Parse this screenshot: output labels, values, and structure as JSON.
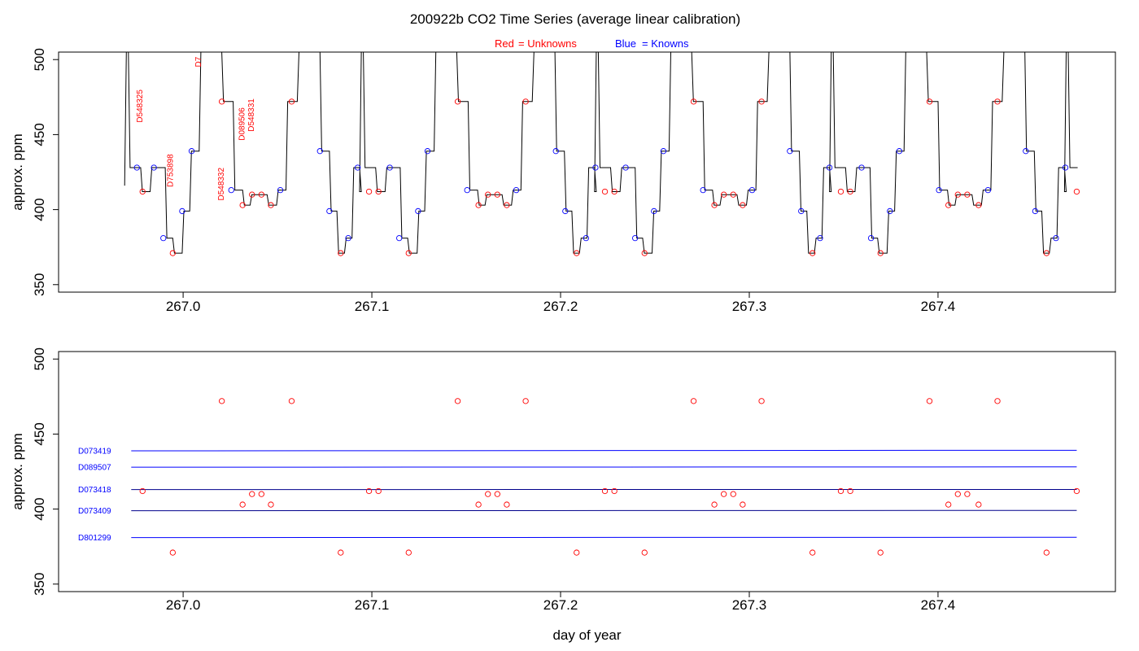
{
  "title": "200922b   CO2 Time Series (average linear calibration)",
  "legend": {
    "red_word": "Red",
    "red_rest": "= Unknowns",
    "blue_word": "Blue",
    "blue_rest": "= Knowns",
    "red_color": "#ff0000",
    "blue_color": "#0000ff"
  },
  "colors": {
    "unknown": "#ff0000",
    "known": "#0000ff",
    "trace": "#000000"
  },
  "chart_data": [
    {
      "type": "line",
      "panel": "top",
      "ylabel": "approx. ppm",
      "xlabel": "",
      "xlim": [
        266.934,
        267.494
      ],
      "ylim": [
        345,
        505
      ],
      "xticks": [
        267.0,
        267.1,
        267.2,
        267.3,
        267.4
      ],
      "xtick_labels": [
        "267.0",
        "267.1",
        "267.2",
        "267.3",
        "267.4"
      ],
      "yticks": [
        350,
        400,
        450,
        500
      ],
      "ytick_labels": [
        "350",
        "400",
        "450",
        "500"
      ],
      "trace_start": 266.969,
      "trace_end": 267.474,
      "cycle_length": 0.1245,
      "cycle_levels": [
        [
          0.0,
          505
        ],
        [
          0.002,
          428
        ],
        [
          0.0085,
          412
        ],
        [
          0.0135,
          428
        ],
        [
          0.0215,
          381
        ],
        [
          0.0255,
          371
        ],
        [
          0.0305,
          399
        ],
        [
          0.0345,
          439
        ],
        [
          0.0395,
          505
        ],
        [
          0.0515,
          472
        ],
        [
          0.0575,
          413
        ],
        [
          0.0625,
          403
        ],
        [
          0.0665,
          410
        ],
        [
          0.0755,
          403
        ],
        [
          0.0805,
          413
        ],
        [
          0.0855,
          472
        ],
        [
          0.0915,
          505
        ],
        [
          0.1035,
          439
        ],
        [
          0.1085,
          399
        ],
        [
          0.1125,
          371
        ],
        [
          0.1165,
          381
        ],
        [
          0.1205,
          428
        ],
        [
          0.1245,
          412
        ]
      ],
      "points": [
        {
          "x": 266.9755,
          "y": 428,
          "group": "known"
        },
        {
          "x": 266.9785,
          "y": 412,
          "group": "unknown"
        },
        {
          "x": 266.9845,
          "y": 428,
          "group": "known"
        },
        {
          "x": 266.9895,
          "y": 381,
          "group": "known"
        },
        {
          "x": 266.9945,
          "y": 371,
          "group": "unknown"
        },
        {
          "x": 266.9995,
          "y": 399,
          "group": "known"
        },
        {
          "x": 267.0045,
          "y": 439,
          "group": "known"
        },
        {
          "x": 267.0205,
          "y": 472,
          "group": "unknown"
        },
        {
          "x": 267.0255,
          "y": 413,
          "group": "known"
        },
        {
          "x": 267.0315,
          "y": 403,
          "group": "unknown"
        },
        {
          "x": 267.0365,
          "y": 410,
          "group": "unknown"
        },
        {
          "x": 267.0415,
          "y": 410,
          "group": "unknown"
        },
        {
          "x": 267.0465,
          "y": 403,
          "group": "unknown"
        },
        {
          "x": 267.0515,
          "y": 413,
          "group": "known"
        },
        {
          "x": 267.0575,
          "y": 472,
          "group": "unknown"
        },
        {
          "x": 267.0725,
          "y": 439,
          "group": "known"
        },
        {
          "x": 267.0775,
          "y": 399,
          "group": "known"
        },
        {
          "x": 267.0835,
          "y": 371,
          "group": "unknown"
        },
        {
          "x": 267.0875,
          "y": 381,
          "group": "known"
        },
        {
          "x": 267.0925,
          "y": 428,
          "group": "known"
        },
        {
          "x": 267.0985,
          "y": 412,
          "group": "unknown"
        },
        {
          "x": 267.1035,
          "y": 412,
          "group": "unknown"
        },
        {
          "x": 267.1095,
          "y": 428,
          "group": "known"
        },
        {
          "x": 267.1145,
          "y": 381,
          "group": "known"
        },
        {
          "x": 267.1195,
          "y": 371,
          "group": "unknown"
        },
        {
          "x": 267.1245,
          "y": 399,
          "group": "known"
        },
        {
          "x": 267.1295,
          "y": 439,
          "group": "known"
        },
        {
          "x": 267.1455,
          "y": 472,
          "group": "unknown"
        },
        {
          "x": 267.1505,
          "y": 413,
          "group": "known"
        },
        {
          "x": 267.1565,
          "y": 403,
          "group": "unknown"
        },
        {
          "x": 267.1615,
          "y": 410,
          "group": "unknown"
        },
        {
          "x": 267.1665,
          "y": 410,
          "group": "unknown"
        },
        {
          "x": 267.1715,
          "y": 403,
          "group": "unknown"
        },
        {
          "x": 267.1765,
          "y": 413,
          "group": "known"
        },
        {
          "x": 267.1815,
          "y": 472,
          "group": "unknown"
        },
        {
          "x": 267.1975,
          "y": 439,
          "group": "known"
        },
        {
          "x": 267.2025,
          "y": 399,
          "group": "known"
        },
        {
          "x": 267.2085,
          "y": 371,
          "group": "unknown"
        },
        {
          "x": 267.2135,
          "y": 381,
          "group": "known"
        },
        {
          "x": 267.2185,
          "y": 428,
          "group": "known"
        },
        {
          "x": 267.2235,
          "y": 412,
          "group": "unknown"
        },
        {
          "x": 267.2285,
          "y": 412,
          "group": "unknown"
        },
        {
          "x": 267.2345,
          "y": 428,
          "group": "known"
        },
        {
          "x": 267.2395,
          "y": 381,
          "group": "known"
        },
        {
          "x": 267.2445,
          "y": 371,
          "group": "unknown"
        },
        {
          "x": 267.2495,
          "y": 399,
          "group": "known"
        },
        {
          "x": 267.2545,
          "y": 439,
          "group": "known"
        },
        {
          "x": 267.2705,
          "y": 472,
          "group": "unknown"
        },
        {
          "x": 267.2755,
          "y": 413,
          "group": "known"
        },
        {
          "x": 267.2815,
          "y": 403,
          "group": "unknown"
        },
        {
          "x": 267.2865,
          "y": 410,
          "group": "unknown"
        },
        {
          "x": 267.2915,
          "y": 410,
          "group": "unknown"
        },
        {
          "x": 267.2965,
          "y": 403,
          "group": "unknown"
        },
        {
          "x": 267.3015,
          "y": 413,
          "group": "known"
        },
        {
          "x": 267.3065,
          "y": 472,
          "group": "unknown"
        },
        {
          "x": 267.3215,
          "y": 439,
          "group": "known"
        },
        {
          "x": 267.3275,
          "y": 399,
          "group": "known"
        },
        {
          "x": 267.3335,
          "y": 371,
          "group": "unknown"
        },
        {
          "x": 267.3375,
          "y": 381,
          "group": "known"
        },
        {
          "x": 267.3425,
          "y": 428,
          "group": "known"
        },
        {
          "x": 267.3485,
          "y": 412,
          "group": "unknown"
        },
        {
          "x": 267.3535,
          "y": 412,
          "group": "unknown"
        },
        {
          "x": 267.3595,
          "y": 428,
          "group": "known"
        },
        {
          "x": 267.3645,
          "y": 381,
          "group": "known"
        },
        {
          "x": 267.3695,
          "y": 371,
          "group": "unknown"
        },
        {
          "x": 267.3745,
          "y": 399,
          "group": "known"
        },
        {
          "x": 267.3795,
          "y": 439,
          "group": "known"
        },
        {
          "x": 267.3955,
          "y": 472,
          "group": "unknown"
        },
        {
          "x": 267.4005,
          "y": 413,
          "group": "known"
        },
        {
          "x": 267.4055,
          "y": 403,
          "group": "unknown"
        },
        {
          "x": 267.4105,
          "y": 410,
          "group": "unknown"
        },
        {
          "x": 267.4155,
          "y": 410,
          "group": "unknown"
        },
        {
          "x": 267.4215,
          "y": 403,
          "group": "unknown"
        },
        {
          "x": 267.4265,
          "y": 413,
          "group": "known"
        },
        {
          "x": 267.4315,
          "y": 472,
          "group": "unknown"
        },
        {
          "x": 267.4465,
          "y": 439,
          "group": "known"
        },
        {
          "x": 267.4515,
          "y": 399,
          "group": "known"
        },
        {
          "x": 267.4575,
          "y": 371,
          "group": "unknown"
        },
        {
          "x": 267.4625,
          "y": 381,
          "group": "known"
        },
        {
          "x": 267.4675,
          "y": 428,
          "group": "known"
        },
        {
          "x": 267.4735,
          "y": 412,
          "group": "unknown"
        }
      ],
      "annotations": [
        {
          "text": "D548325",
          "x": 266.9785,
          "y": 458,
          "color": "#ff0000"
        },
        {
          "text": "D753898",
          "x": 266.9945,
          "y": 415,
          "color": "#ff0000"
        },
        {
          "text": "D7",
          "x": 267.0095,
          "y": 495,
          "color": "#ff0000"
        },
        {
          "text": "D548332",
          "x": 267.0215,
          "y": 406,
          "color": "#ff0000"
        },
        {
          "text": "D089506",
          "x": 267.0325,
          "y": 446,
          "color": "#ff0000"
        },
        {
          "text": "D548331",
          "x": 267.0375,
          "y": 452,
          "color": "#ff0000"
        }
      ]
    },
    {
      "type": "scatter",
      "panel": "bottom",
      "ylabel": "approx. ppm",
      "xlabel": "day of year",
      "xlim": [
        266.934,
        267.494
      ],
      "ylim": [
        345,
        505
      ],
      "xticks": [
        267.0,
        267.1,
        267.2,
        267.3,
        267.4
      ],
      "xtick_labels": [
        "267.0",
        "267.1",
        "267.2",
        "267.3",
        "267.4"
      ],
      "yticks": [
        350,
        400,
        450,
        500
      ],
      "ytick_labels": [
        "350",
        "400",
        "450",
        "500"
      ],
      "standards": [
        {
          "name": "D073419",
          "y0": 438.8,
          "y1": 439.2,
          "color": "#0000ff"
        },
        {
          "name": "D089507",
          "y0": 427.9,
          "y1": 428.1,
          "color": "#0000ff"
        },
        {
          "name": "D073418",
          "y0": 413.0,
          "y1": 413.1,
          "color": "#00008b"
        },
        {
          "name": "D073409",
          "y0": 398.9,
          "y1": 399.1,
          "color": "#00008b"
        },
        {
          "name": "D801299",
          "y0": 381.0,
          "y1": 381.2,
          "color": "#0000ff"
        }
      ],
      "standards_x": [
        266.9725,
        267.4735
      ],
      "points": [
        {
          "x": 266.9785,
          "y": 412
        },
        {
          "x": 266.9945,
          "y": 371
        },
        {
          "x": 267.0205,
          "y": 472
        },
        {
          "x": 267.0315,
          "y": 403
        },
        {
          "x": 267.0365,
          "y": 410
        },
        {
          "x": 267.0415,
          "y": 410
        },
        {
          "x": 267.0465,
          "y": 403
        },
        {
          "x": 267.0575,
          "y": 472
        },
        {
          "x": 267.0835,
          "y": 371
        },
        {
          "x": 267.0985,
          "y": 412
        },
        {
          "x": 267.1035,
          "y": 412
        },
        {
          "x": 267.1195,
          "y": 371
        },
        {
          "x": 267.1455,
          "y": 472
        },
        {
          "x": 267.1565,
          "y": 403
        },
        {
          "x": 267.1615,
          "y": 410
        },
        {
          "x": 267.1665,
          "y": 410
        },
        {
          "x": 267.1715,
          "y": 403
        },
        {
          "x": 267.1815,
          "y": 472
        },
        {
          "x": 267.2085,
          "y": 371
        },
        {
          "x": 267.2235,
          "y": 412
        },
        {
          "x": 267.2285,
          "y": 412
        },
        {
          "x": 267.2445,
          "y": 371
        },
        {
          "x": 267.2705,
          "y": 472
        },
        {
          "x": 267.2815,
          "y": 403
        },
        {
          "x": 267.2865,
          "y": 410
        },
        {
          "x": 267.2915,
          "y": 410
        },
        {
          "x": 267.2965,
          "y": 403
        },
        {
          "x": 267.3065,
          "y": 472
        },
        {
          "x": 267.3335,
          "y": 371
        },
        {
          "x": 267.3485,
          "y": 412
        },
        {
          "x": 267.3535,
          "y": 412
        },
        {
          "x": 267.3695,
          "y": 371
        },
        {
          "x": 267.3955,
          "y": 472
        },
        {
          "x": 267.4055,
          "y": 403
        },
        {
          "x": 267.4105,
          "y": 410
        },
        {
          "x": 267.4155,
          "y": 410
        },
        {
          "x": 267.4215,
          "y": 403
        },
        {
          "x": 267.4315,
          "y": 472
        },
        {
          "x": 267.4575,
          "y": 371
        },
        {
          "x": 267.4735,
          "y": 412
        }
      ]
    }
  ]
}
